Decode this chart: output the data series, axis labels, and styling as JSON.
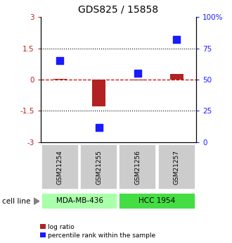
{
  "title": "GDS825 / 15858",
  "samples": [
    "GSM21254",
    "GSM21255",
    "GSM21256",
    "GSM21257"
  ],
  "log_ratio": [
    0.05,
    -1.3,
    -0.05,
    0.28
  ],
  "percentile_rank": [
    65,
    12,
    55,
    82
  ],
  "ylim_left": [
    -3,
    3
  ],
  "ylim_right": [
    0,
    100
  ],
  "yticks_left": [
    -3,
    -1.5,
    0,
    1.5,
    3
  ],
  "ytick_labels_left": [
    "-3",
    "-1.5",
    "0",
    "1.5",
    "3"
  ],
  "ytick_labels_right": [
    "0",
    "25",
    "50",
    "75",
    "100%"
  ],
  "hlines": [
    1.5,
    -1.5
  ],
  "bar_color": "#b22222",
  "dot_color": "#1a1aff",
  "zero_line_color": "#cc0000",
  "cell_lines": [
    {
      "label": "MDA-MB-436",
      "samples": [
        0,
        1
      ],
      "color": "#aaffaa"
    },
    {
      "label": "HCC 1954",
      "samples": [
        2,
        3
      ],
      "color": "#44dd44"
    }
  ],
  "cell_line_label": "cell line",
  "legend_red_label": "log ratio",
  "legend_blue_label": "percentile rank within the sample",
  "bar_width": 0.35,
  "dot_size": 45,
  "sample_box_color": "#cccccc",
  "title_fontsize": 10,
  "tick_fontsize": 7.5
}
